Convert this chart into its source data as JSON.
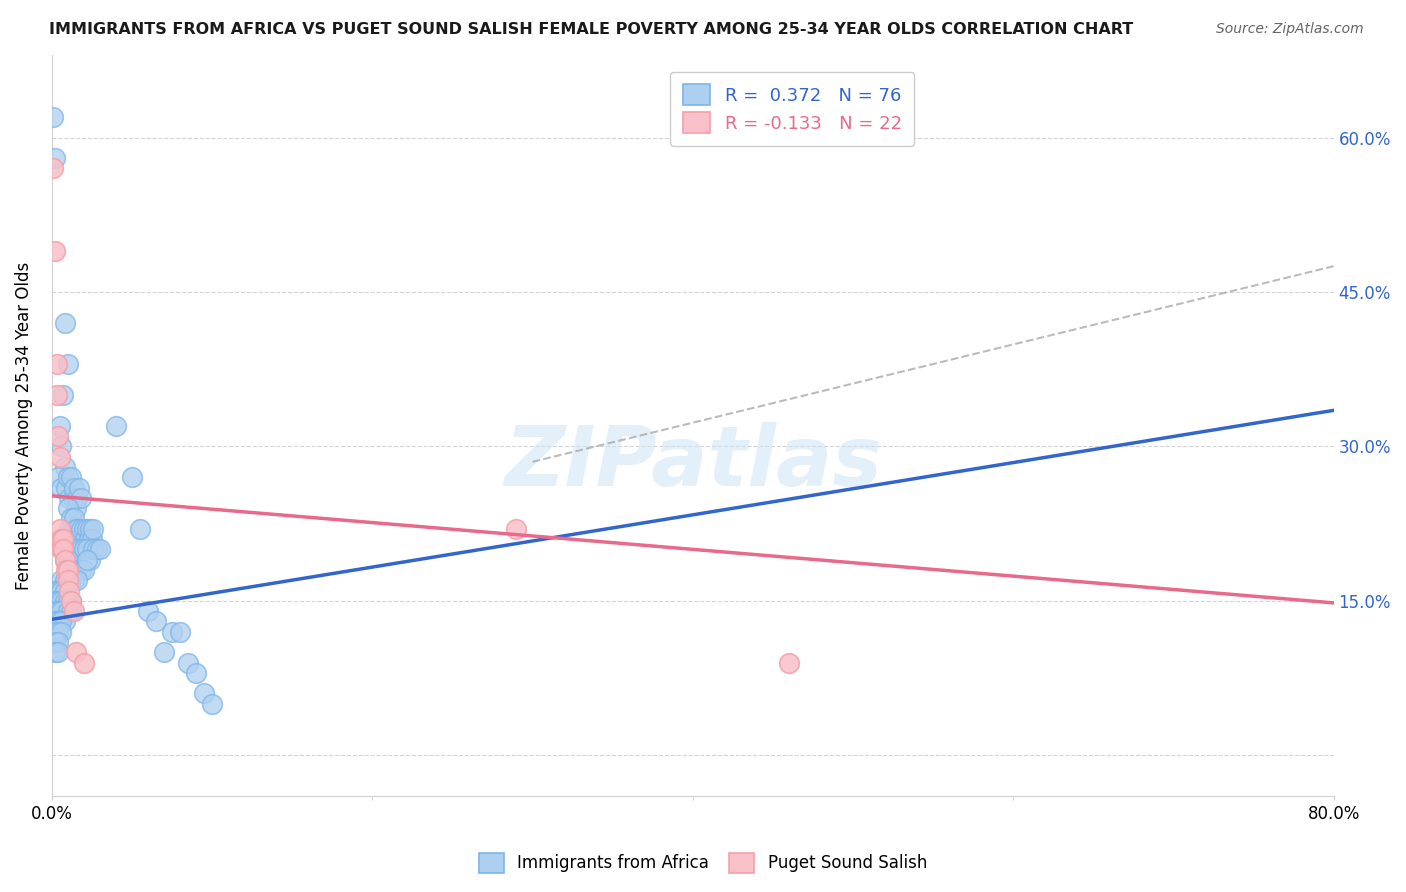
{
  "title": "IMMIGRANTS FROM AFRICA VS PUGET SOUND SALISH FEMALE POVERTY AMONG 25-34 YEAR OLDS CORRELATION CHART",
  "source": "Source: ZipAtlas.com",
  "ylabel": "Female Poverty Among 25-34 Year Olds",
  "xlim": [
    0.0,
    0.8
  ],
  "ylim": [
    -0.04,
    0.68
  ],
  "yticks": [
    0.0,
    0.15,
    0.3,
    0.45,
    0.6
  ],
  "ytick_labels": [
    "",
    "15.0%",
    "30.0%",
    "45.0%",
    "60.0%"
  ],
  "xticks": [
    0.0,
    0.2,
    0.4,
    0.6,
    0.8
  ],
  "grid_color": "#d0d0d0",
  "background_color": "#ffffff",
  "watermark": "ZIPatlas",
  "blue_color": "#7EB5E8",
  "blue_line_color": "#3366CC",
  "blue_fill": "#AED0F0",
  "pink_color": "#F4A0A8",
  "pink_line_color": "#E8698A",
  "pink_fill": "#F8C0C8",
  "dashed_line_color": "#aaaaaa",
  "blue_trend": [
    0.0,
    0.8,
    0.132,
    0.335
  ],
  "pink_trend": [
    0.0,
    0.8,
    0.252,
    0.148
  ],
  "dashed_trend": [
    0.3,
    0.8,
    0.285,
    0.475
  ],
  "blue_scatter": [
    [
      0.001,
      0.62
    ],
    [
      0.002,
      0.58
    ],
    [
      0.008,
      0.42
    ],
    [
      0.01,
      0.38
    ],
    [
      0.005,
      0.32
    ],
    [
      0.007,
      0.35
    ],
    [
      0.006,
      0.3
    ],
    [
      0.008,
      0.28
    ],
    [
      0.004,
      0.27
    ],
    [
      0.006,
      0.26
    ],
    [
      0.009,
      0.26
    ],
    [
      0.01,
      0.27
    ],
    [
      0.011,
      0.25
    ],
    [
      0.012,
      0.27
    ],
    [
      0.013,
      0.25
    ],
    [
      0.014,
      0.26
    ],
    [
      0.015,
      0.24
    ],
    [
      0.016,
      0.25
    ],
    [
      0.017,
      0.26
    ],
    [
      0.018,
      0.25
    ],
    [
      0.01,
      0.24
    ],
    [
      0.011,
      0.22
    ],
    [
      0.012,
      0.23
    ],
    [
      0.013,
      0.22
    ],
    [
      0.014,
      0.23
    ],
    [
      0.015,
      0.22
    ],
    [
      0.016,
      0.22
    ],
    [
      0.017,
      0.21
    ],
    [
      0.018,
      0.22
    ],
    [
      0.02,
      0.22
    ],
    [
      0.021,
      0.21
    ],
    [
      0.022,
      0.22
    ],
    [
      0.023,
      0.21
    ],
    [
      0.024,
      0.22
    ],
    [
      0.025,
      0.21
    ],
    [
      0.026,
      0.22
    ],
    [
      0.012,
      0.2
    ],
    [
      0.014,
      0.2
    ],
    [
      0.016,
      0.2
    ],
    [
      0.018,
      0.2
    ],
    [
      0.02,
      0.2
    ],
    [
      0.022,
      0.2
    ],
    [
      0.024,
      0.19
    ],
    [
      0.026,
      0.2
    ],
    [
      0.028,
      0.2
    ],
    [
      0.03,
      0.2
    ],
    [
      0.008,
      0.19
    ],
    [
      0.01,
      0.19
    ],
    [
      0.012,
      0.18
    ],
    [
      0.014,
      0.18
    ],
    [
      0.016,
      0.18
    ],
    [
      0.018,
      0.18
    ],
    [
      0.02,
      0.18
    ],
    [
      0.022,
      0.19
    ],
    [
      0.006,
      0.17
    ],
    [
      0.008,
      0.17
    ],
    [
      0.01,
      0.17
    ],
    [
      0.012,
      0.17
    ],
    [
      0.014,
      0.17
    ],
    [
      0.016,
      0.17
    ],
    [
      0.002,
      0.16
    ],
    [
      0.004,
      0.16
    ],
    [
      0.006,
      0.16
    ],
    [
      0.008,
      0.16
    ],
    [
      0.002,
      0.15
    ],
    [
      0.004,
      0.15
    ],
    [
      0.006,
      0.15
    ],
    [
      0.008,
      0.15
    ],
    [
      0.01,
      0.15
    ],
    [
      0.012,
      0.15
    ],
    [
      0.002,
      0.14
    ],
    [
      0.004,
      0.14
    ],
    [
      0.006,
      0.14
    ],
    [
      0.008,
      0.13
    ],
    [
      0.01,
      0.14
    ],
    [
      0.012,
      0.14
    ],
    [
      0.002,
      0.13
    ],
    [
      0.004,
      0.13
    ],
    [
      0.006,
      0.13
    ],
    [
      0.002,
      0.12
    ],
    [
      0.004,
      0.12
    ],
    [
      0.006,
      0.12
    ],
    [
      0.002,
      0.11
    ],
    [
      0.004,
      0.11
    ],
    [
      0.002,
      0.1
    ],
    [
      0.004,
      0.1
    ],
    [
      0.04,
      0.32
    ],
    [
      0.05,
      0.27
    ],
    [
      0.055,
      0.22
    ],
    [
      0.06,
      0.14
    ],
    [
      0.065,
      0.13
    ],
    [
      0.07,
      0.1
    ],
    [
      0.075,
      0.12
    ],
    [
      0.08,
      0.12
    ],
    [
      0.085,
      0.09
    ],
    [
      0.09,
      0.08
    ],
    [
      0.095,
      0.06
    ],
    [
      0.1,
      0.05
    ]
  ],
  "pink_scatter": [
    [
      0.001,
      0.57
    ],
    [
      0.002,
      0.49
    ],
    [
      0.003,
      0.38
    ],
    [
      0.003,
      0.35
    ],
    [
      0.004,
      0.31
    ],
    [
      0.005,
      0.29
    ],
    [
      0.005,
      0.22
    ],
    [
      0.006,
      0.21
    ],
    [
      0.006,
      0.2
    ],
    [
      0.007,
      0.21
    ],
    [
      0.007,
      0.2
    ],
    [
      0.008,
      0.19
    ],
    [
      0.009,
      0.18
    ],
    [
      0.01,
      0.18
    ],
    [
      0.01,
      0.17
    ],
    [
      0.011,
      0.16
    ],
    [
      0.012,
      0.15
    ],
    [
      0.014,
      0.14
    ],
    [
      0.015,
      0.1
    ],
    [
      0.02,
      0.09
    ],
    [
      0.29,
      0.22
    ],
    [
      0.46,
      0.09
    ]
  ]
}
